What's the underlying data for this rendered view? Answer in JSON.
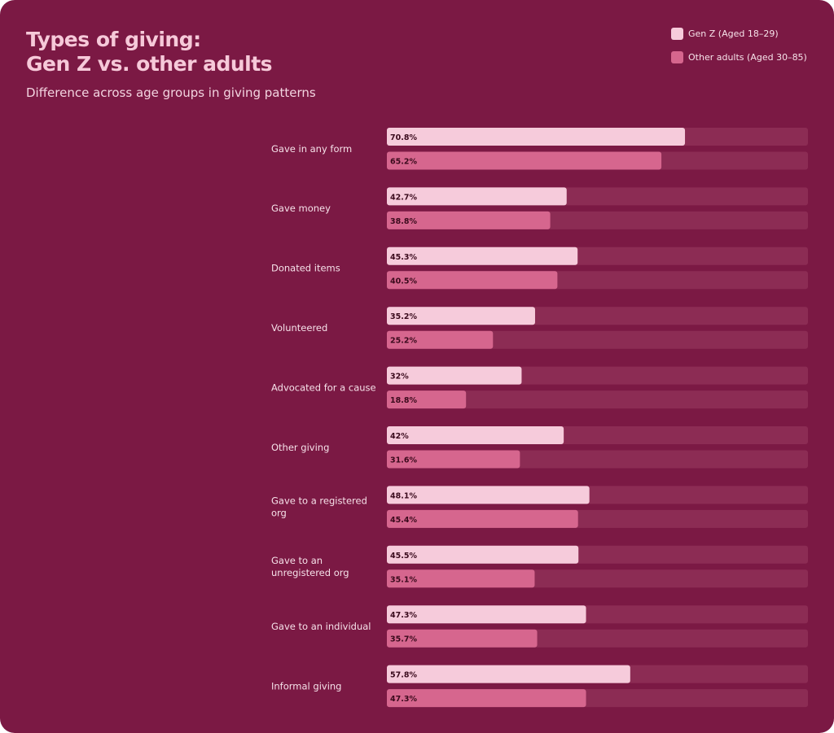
{
  "colors": {
    "background": "#7b1944",
    "track": "#8c2c54",
    "genz": "#f6cbdb",
    "other": "#d6668e"
  },
  "chart_data": {
    "type": "bar",
    "orientation": "horizontal",
    "title_lines": [
      "Types of giving:",
      "Gen Z vs. other adults"
    ],
    "subtitle": "Difference across age groups in giving patterns",
    "xlim": [
      0,
      100
    ],
    "value_suffix": "%",
    "legend_position": "top-right",
    "categories": [
      [
        "Gave in any form"
      ],
      [
        "Gave money"
      ],
      [
        "Donated items"
      ],
      [
        "Volunteered"
      ],
      [
        "Advocated for a cause"
      ],
      [
        "Other giving"
      ],
      [
        "Gave to a registered",
        "org"
      ],
      [
        "Gave to an",
        "unregistered org"
      ],
      [
        "Gave to an individual"
      ],
      [
        "Informal giving"
      ]
    ],
    "series": [
      {
        "name": "Gen Z (Aged 18–29)",
        "color": "#f6cbdb",
        "values": [
          70.8,
          42.7,
          45.3,
          35.2,
          32,
          42,
          48.1,
          45.5,
          47.3,
          57.8
        ]
      },
      {
        "name": "Other adults (Aged 30–85)",
        "color": "#d6668e",
        "values": [
          65.2,
          38.8,
          40.5,
          25.2,
          18.8,
          31.6,
          45.4,
          35.1,
          35.7,
          47.3
        ]
      }
    ]
  }
}
